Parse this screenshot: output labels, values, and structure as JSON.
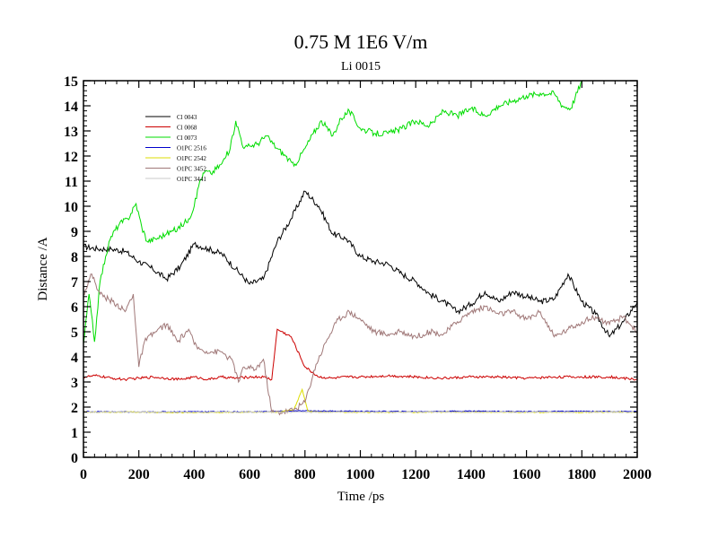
{
  "chart_data": {
    "type": "line",
    "title": "0.75 M 1E6 V/m",
    "subtitle": "Li 0015",
    "xlabel": "Time /ps",
    "ylabel": "Distance /A",
    "xlim": [
      0,
      2000
    ],
    "ylim": [
      0,
      15
    ],
    "xticks": [
      0,
      200,
      400,
      600,
      800,
      1000,
      1200,
      1400,
      1600,
      1800,
      2000
    ],
    "yticks": [
      0,
      1,
      2,
      3,
      4,
      5,
      6,
      7,
      8,
      9,
      10,
      11,
      12,
      13,
      14,
      15
    ],
    "grid": false,
    "legend_position": "top-left",
    "series": [
      {
        "name": "Cl 0043",
        "color": "#000000",
        "x": [
          0,
          50,
          100,
          150,
          200,
          250,
          300,
          350,
          400,
          450,
          500,
          550,
          600,
          650,
          700,
          750,
          800,
          850,
          900,
          950,
          1000,
          1050,
          1100,
          1150,
          1200,
          1250,
          1300,
          1350,
          1400,
          1450,
          1500,
          1550,
          1600,
          1650,
          1700,
          1750,
          1800,
          1850,
          1900,
          1950,
          2000
        ],
        "y": [
          8.4,
          8.3,
          8.3,
          8.2,
          7.8,
          7.5,
          7.1,
          7.6,
          8.5,
          8.3,
          8.1,
          7.5,
          6.9,
          7.1,
          8.6,
          9.5,
          10.6,
          10.0,
          8.9,
          8.7,
          8.0,
          7.8,
          7.7,
          7.3,
          7.0,
          6.5,
          6.2,
          5.8,
          6.1,
          6.6,
          6.2,
          6.6,
          6.4,
          6.2,
          6.3,
          7.3,
          6.2,
          5.7,
          4.8,
          5.4,
          6.2
        ]
      },
      {
        "name": "Cl 0068",
        "color": "#cc0000",
        "x": [
          0,
          50,
          100,
          150,
          200,
          250,
          300,
          350,
          400,
          450,
          500,
          550,
          600,
          650,
          680,
          700,
          750,
          800,
          850,
          900,
          950,
          1000,
          1100,
          1200,
          1300,
          1400,
          1500,
          1600,
          1700,
          1800,
          1900,
          2000
        ],
        "y": [
          3.2,
          3.25,
          3.15,
          3.1,
          3.15,
          3.2,
          3.15,
          3.1,
          3.2,
          3.1,
          3.2,
          3.15,
          3.2,
          3.2,
          3.1,
          5.1,
          4.8,
          3.6,
          3.2,
          3.15,
          3.2,
          3.2,
          3.25,
          3.2,
          3.15,
          3.2,
          3.2,
          3.15,
          3.2,
          3.2,
          3.2,
          3.1
        ]
      },
      {
        "name": "Cl 0073",
        "color": "#00dd00",
        "x": [
          0,
          20,
          40,
          60,
          80,
          100,
          130,
          160,
          190,
          210,
          230,
          260,
          300,
          340,
          380,
          400,
          420,
          440,
          460,
          500,
          530,
          550,
          580,
          600,
          630,
          660,
          700,
          730,
          760,
          800,
          830,
          860,
          900,
          930,
          960,
          1000,
          1050,
          1100,
          1150,
          1200,
          1250,
          1300,
          1350,
          1400,
          1450,
          1500,
          1550,
          1600,
          1650,
          1700,
          1730,
          1760,
          1800
        ],
        "y": [
          4.5,
          6.5,
          4.6,
          7.0,
          8.0,
          8.8,
          9.3,
          9.5,
          10.1,
          9.2,
          8.6,
          8.7,
          8.9,
          9.1,
          9.5,
          10.0,
          11.0,
          11.4,
          11.3,
          11.7,
          12.3,
          13.4,
          12.3,
          12.4,
          12.5,
          12.8,
          12.3,
          12.0,
          11.6,
          12.3,
          12.9,
          13.4,
          12.8,
          13.5,
          13.8,
          13.1,
          12.9,
          12.9,
          13.1,
          13.4,
          13.2,
          13.8,
          13.6,
          13.9,
          13.6,
          14.0,
          14.2,
          14.4,
          14.5,
          14.5,
          14.0,
          13.9,
          15.0
        ]
      },
      {
        "name": "O1PC 2516",
        "color": "#0000cc",
        "x": [
          0,
          200,
          400,
          600,
          800,
          1000,
          1200,
          1400,
          1600,
          1800,
          2000
        ],
        "y": [
          1.82,
          1.8,
          1.82,
          1.81,
          1.85,
          1.83,
          1.82,
          1.84,
          1.82,
          1.83,
          1.82
        ]
      },
      {
        "name": "O1PC 2542",
        "color": "#dddd00",
        "x": [
          0,
          200,
          400,
          600,
          700,
          760,
          790,
          810,
          830,
          900,
          1100,
          1300,
          1500,
          1700,
          1900,
          2000
        ],
        "y": [
          1.8,
          1.8,
          1.78,
          1.8,
          1.8,
          1.9,
          2.7,
          1.85,
          1.8,
          1.8,
          1.79,
          1.8,
          1.8,
          1.79,
          1.8,
          1.8
        ]
      },
      {
        "name": "O1PC 3452",
        "color": "#a07878",
        "x": [
          0,
          30,
          60,
          90,
          120,
          150,
          180,
          200,
          220,
          260,
          300,
          340,
          380,
          400,
          420,
          460,
          500,
          540,
          560,
          580,
          620,
          650,
          680,
          720,
          760,
          800,
          840,
          880,
          920,
          960,
          1000,
          1050,
          1100,
          1150,
          1200,
          1250,
          1300,
          1350,
          1400,
          1450,
          1500,
          1550,
          1600,
          1650,
          1700,
          1750,
          1800,
          1850,
          1900,
          1950,
          2000
        ],
        "y": [
          6.5,
          7.3,
          6.5,
          6.3,
          6.1,
          5.8,
          6.5,
          3.6,
          4.6,
          5.0,
          5.3,
          4.6,
          5.1,
          4.5,
          4.3,
          4.2,
          4.2,
          3.8,
          3.0,
          3.6,
          3.5,
          3.9,
          1.8,
          1.8,
          1.9,
          2.2,
          3.7,
          4.7,
          5.5,
          5.8,
          5.5,
          5.0,
          4.9,
          5.0,
          4.8,
          5.0,
          4.9,
          5.4,
          5.8,
          6.0,
          5.7,
          5.8,
          5.5,
          5.8,
          4.8,
          5.1,
          5.4,
          5.6,
          5.3,
          5.6,
          5.0
        ]
      },
      {
        "name": "O1PC 3441",
        "color": "#c8c8c8",
        "x": [
          0,
          500,
          1000,
          1500,
          2000
        ],
        "y": [
          1.8,
          1.8,
          1.8,
          1.8,
          1.8
        ]
      }
    ]
  }
}
